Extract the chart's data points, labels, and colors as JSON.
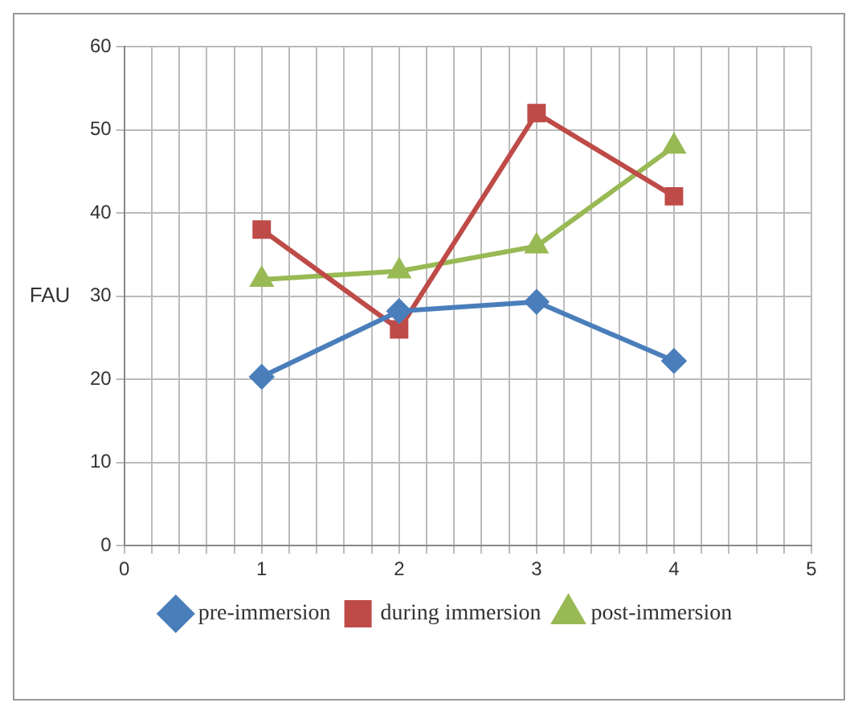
{
  "chart_data": {
    "type": "line",
    "ylabel": "FAU",
    "xlim": [
      0,
      5
    ],
    "ylim": [
      0,
      60
    ],
    "xticks": [
      0,
      {
        "value": 0.2,
        "label": null
      },
      {
        "value": 0.4,
        "label": null
      },
      {
        "value": 0.6,
        "label": null
      },
      {
        "value": 0.8,
        "label": null
      },
      1,
      {
        "value": 1.2,
        "label": null
      },
      {
        "value": 1.4,
        "label": null
      },
      {
        "value": 1.6,
        "label": null
      },
      {
        "value": 1.8,
        "label": null
      },
      2,
      {
        "value": 2.2,
        "label": null
      },
      {
        "value": 2.4,
        "label": null
      },
      {
        "value": 2.6,
        "label": null
      },
      {
        "value": 2.8,
        "label": null
      },
      3,
      {
        "value": 3.2,
        "label": null
      },
      {
        "value": 3.4,
        "label": null
      },
      {
        "value": 3.6,
        "label": null
      },
      {
        "value": 3.8,
        "label": null
      },
      4,
      {
        "value": 4.2,
        "label": null
      },
      {
        "value": 4.4,
        "label": null
      },
      {
        "value": 4.6,
        "label": null
      },
      {
        "value": 4.8,
        "label": null
      },
      5
    ],
    "yticks": [
      0,
      10,
      20,
      30,
      40,
      50,
      60
    ],
    "grid": true,
    "legend": "bottom",
    "x": [
      1,
      2,
      3,
      4
    ],
    "series": [
      {
        "name": "pre-immersion",
        "color": "#4a7ebb",
        "marker": "diamond",
        "values": [
          20.3,
          28.2,
          29.3,
          22.2
        ]
      },
      {
        "name": "during immersion",
        "color": "#be4b48",
        "marker": "square",
        "values": [
          38,
          26,
          52,
          42
        ]
      },
      {
        "name": "post-immersion",
        "color": "#98b954",
        "marker": "triangle",
        "values": [
          32,
          33,
          36,
          48
        ]
      }
    ]
  }
}
